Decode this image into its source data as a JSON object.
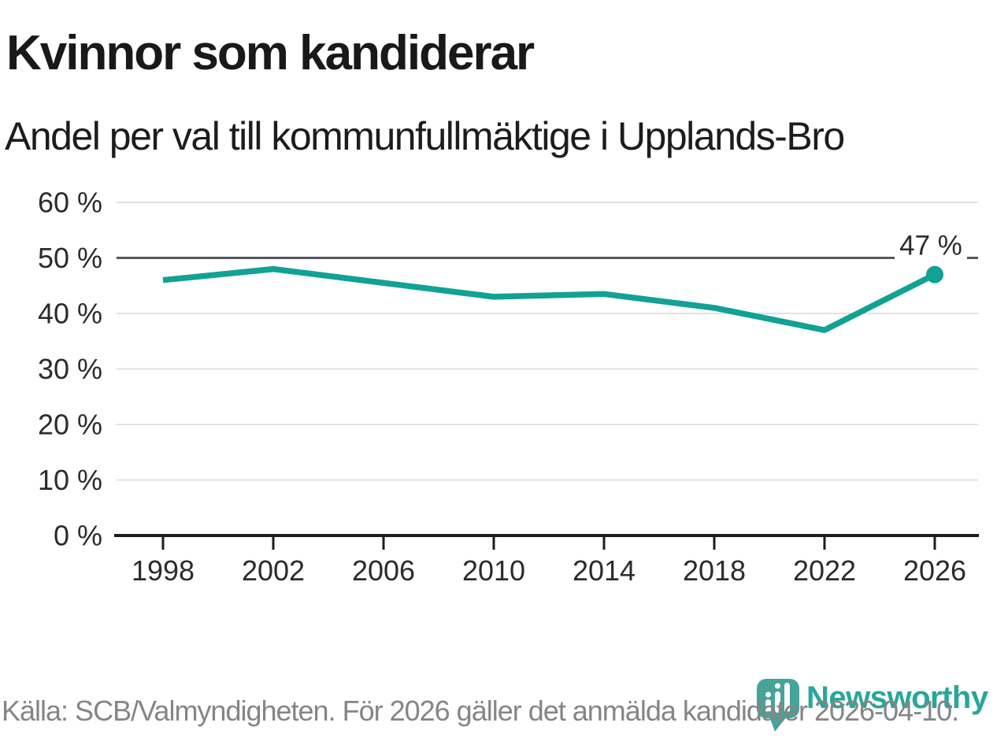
{
  "header": {
    "title": "Kvinnor som kandiderar",
    "subtitle": "Andel per val till kommunfullmäktige i Upplands-Bro"
  },
  "chart_data": {
    "type": "line",
    "title": "Kvinnor som kandiderar",
    "subtitle": "Andel per val till kommunfullmäktige i Upplands-Bro",
    "categories": [
      "1998",
      "2002",
      "2006",
      "2010",
      "2014",
      "2018",
      "2022",
      "2026"
    ],
    "values": [
      46,
      48,
      45.5,
      43,
      43.5,
      41,
      37,
      47
    ],
    "unit": "%",
    "ylim": [
      0,
      60
    ],
    "ytick_step": 10,
    "ytick_suffix": " %",
    "grid": true,
    "highlight_gridline": 50,
    "line_color": "#11a295",
    "annotations": [
      {
        "x": "2026",
        "y": 47,
        "text": "47 %"
      }
    ]
  },
  "footer": {
    "source": "Källa: SCB/Valmyndigheten. För 2026 gäller det anmälda kandidater 2026-04-10."
  },
  "logo": {
    "wordmark": "Newsworthy",
    "icon": "newsworthy-pin-barchart-icon",
    "color": "#28a69a"
  }
}
